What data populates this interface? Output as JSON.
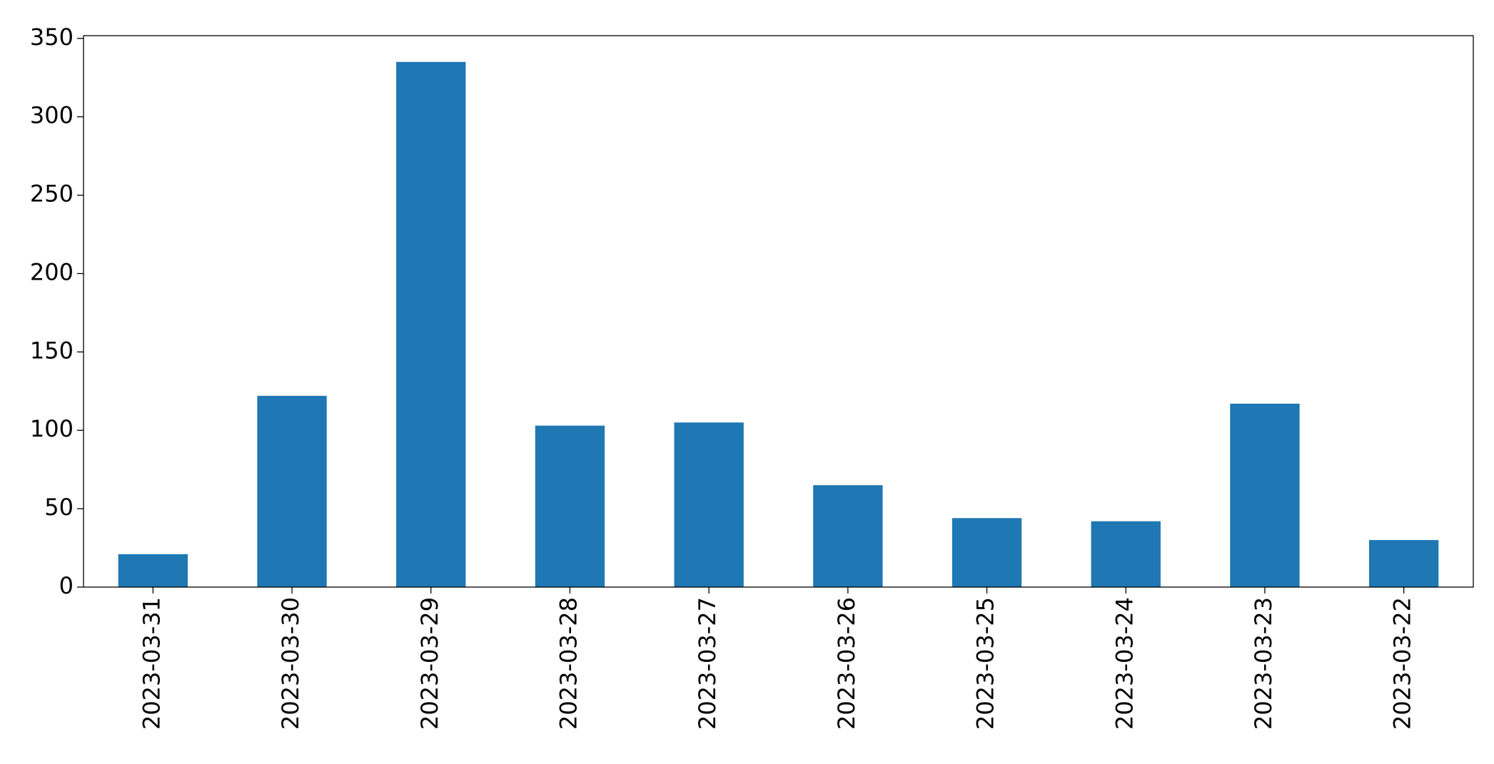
{
  "chart_data": {
    "type": "bar",
    "categories": [
      "2023-03-31",
      "2023-03-30",
      "2023-03-29",
      "2023-03-28",
      "2023-03-27",
      "2023-03-26",
      "2023-03-25",
      "2023-03-24",
      "2023-03-23",
      "2023-03-22"
    ],
    "values": [
      21,
      122,
      335,
      103,
      105,
      65,
      44,
      42,
      117,
      30
    ],
    "color": "#1f77b4",
    "ylim": [
      0,
      351.75
    ],
    "yticks": [
      0,
      50,
      100,
      150,
      200,
      250,
      300,
      350
    ],
    "grid": false
  }
}
